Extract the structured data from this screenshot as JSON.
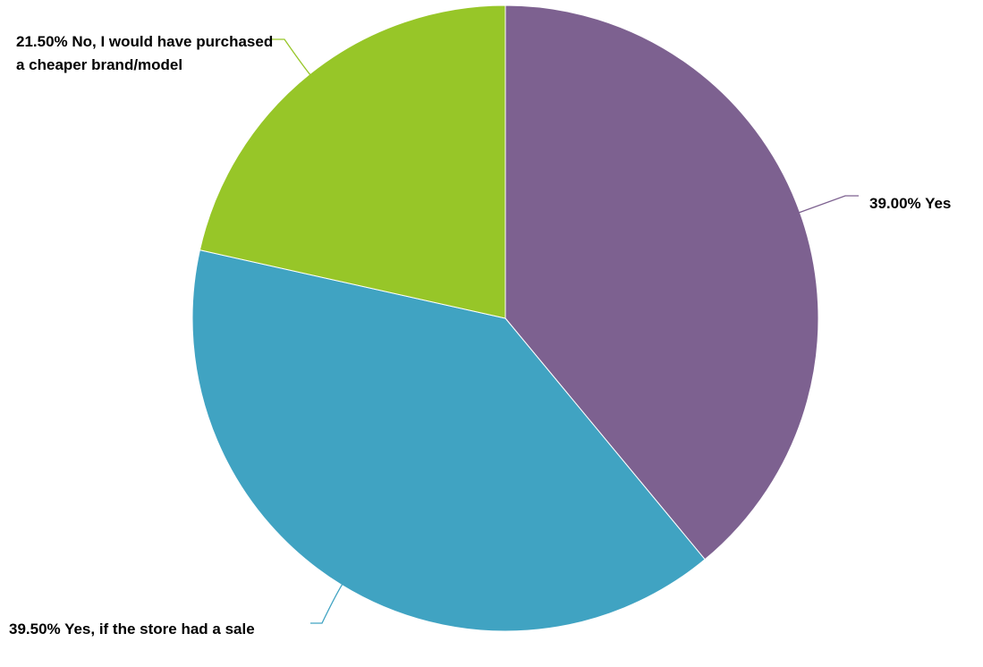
{
  "chart_data": {
    "type": "pie",
    "slices": [
      {
        "label": "39.00% Yes",
        "value": 39.0,
        "color": "#7d6190"
      },
      {
        "label": "39.50% Yes, if the store had a sale",
        "value": 39.5,
        "color": "#40a3c2"
      },
      {
        "label": "21.50% No, I would have purchased a cheaper brand/model",
        "value": 21.5,
        "color": "#97c628"
      }
    ],
    "start_angle": "12 o'clock",
    "direction": "clockwise",
    "legend": "none"
  }
}
